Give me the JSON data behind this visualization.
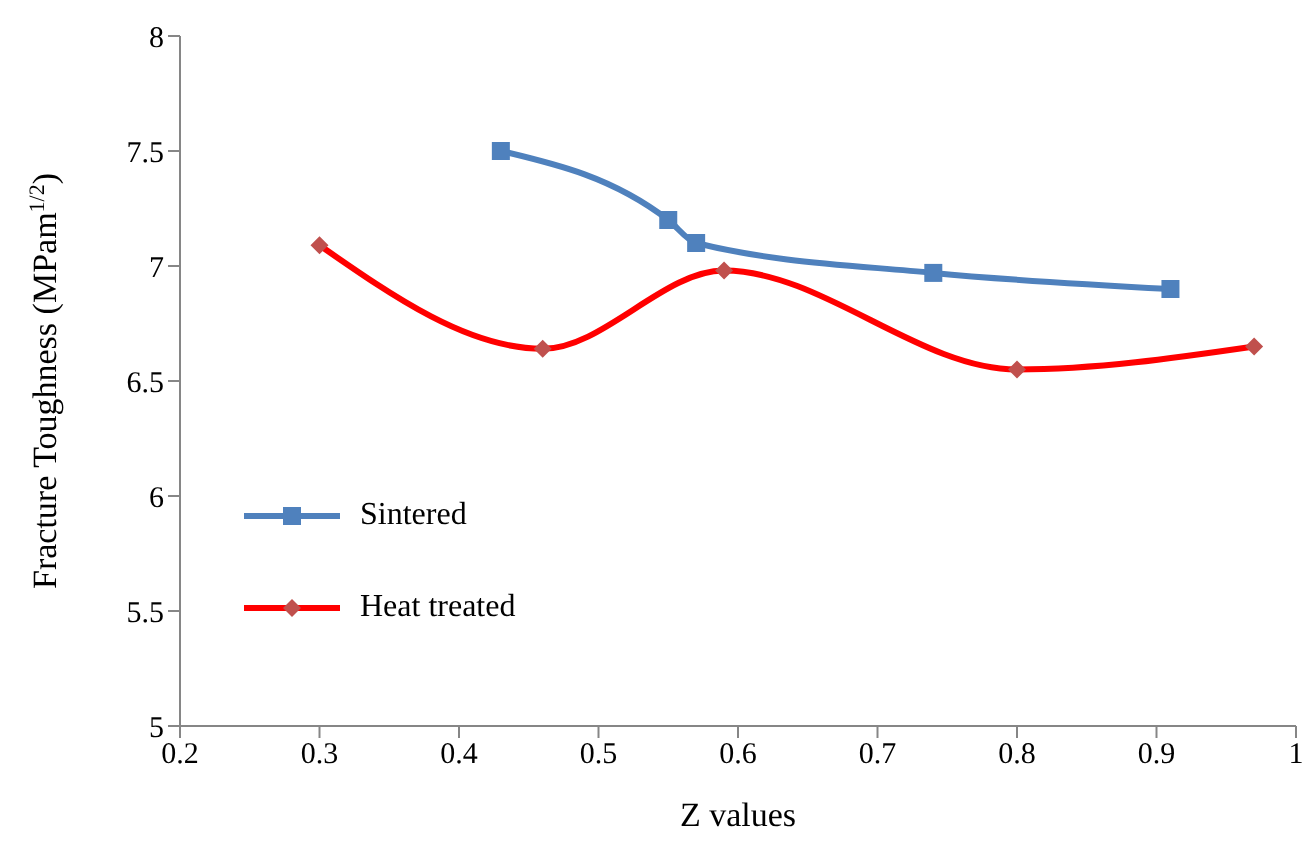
{
  "chart_data": {
    "type": "line",
    "xlabel": "Z values",
    "ylabel": "Fracture Toughness (MPam$^{1/2}$)",
    "xlim": [
      0.2,
      1
    ],
    "xticks": [
      0.2,
      0.3,
      0.4,
      0.5,
      0.6,
      0.7,
      0.8,
      0.9,
      1
    ],
    "ylim": [
      5,
      8
    ],
    "yticks": [
      5,
      5.5,
      6,
      6.5,
      7,
      7.5,
      8
    ],
    "grid": false,
    "legend": "center left",
    "line_style": "solid",
    "series": [
      {
        "name": "Sintered",
        "color": "#4f81bd",
        "marker": "square",
        "x": [
          0.43,
          0.55,
          0.57,
          0.74,
          0.91
        ],
        "values": [
          7.5,
          7.2,
          7.1,
          6.97,
          6.9
        ]
      },
      {
        "name": "Heat treated",
        "color": "#ff0000",
        "marker": "diamond",
        "x": [
          0.3,
          0.46,
          0.59,
          0.8,
          0.97
        ],
        "values": [
          7.09,
          6.64,
          6.98,
          6.55,
          6.65
        ]
      }
    ]
  }
}
